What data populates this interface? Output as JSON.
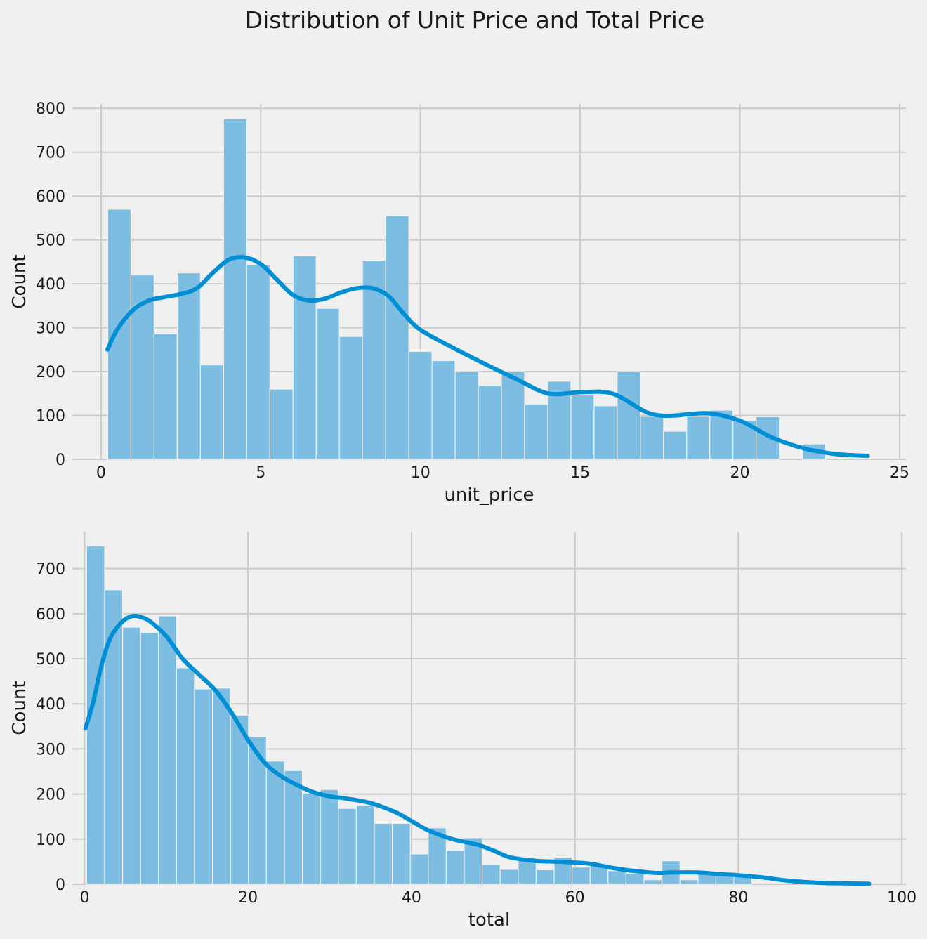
{
  "suptitle": "Distribution of Unit Price and Total Price",
  "colors": {
    "background": "#f0f0f0",
    "grid": "#cbcbcb",
    "bar": "#7dbde2",
    "kde": "#008fd5"
  },
  "chart_data": [
    {
      "type": "bar",
      "kind": "histogram",
      "xlabel": "unit_price",
      "ylabel": "Count",
      "xlim": [
        -0.9,
        25.2
      ],
      "ylim": [
        0,
        810
      ],
      "xticks": [
        0,
        5,
        10,
        15,
        20,
        25
      ],
      "yticks": [
        0,
        100,
        200,
        300,
        400,
        500,
        600,
        700,
        800
      ],
      "grid": true,
      "bins": {
        "start": 0.21,
        "width": 0.725,
        "counts": [
          570,
          420,
          286,
          425,
          215,
          776,
          444,
          160,
          464,
          344,
          280,
          454,
          555,
          246,
          225,
          200,
          168,
          200,
          126,
          178,
          147,
          122,
          200,
          98,
          64,
          98,
          112,
          89,
          97,
          0,
          35,
          0,
          0
        ]
      },
      "kde": {
        "x": [
          0.2,
          0.5,
          1,
          1.5,
          2,
          2.5,
          3,
          3.5,
          4,
          4.5,
          5,
          5.5,
          6,
          6.5,
          7,
          7.5,
          8,
          8.5,
          9,
          9.5,
          10,
          11,
          12,
          13,
          14,
          15,
          16,
          17,
          17.5,
          18,
          19,
          20,
          21,
          22,
          23,
          24
        ],
        "y": [
          250,
          295,
          340,
          362,
          370,
          377,
          390,
          425,
          455,
          460,
          445,
          410,
          375,
          362,
          366,
          380,
          390,
          390,
          372,
          330,
          295,
          255,
          218,
          183,
          150,
          153,
          150,
          110,
          100,
          100,
          105,
          88,
          50,
          25,
          12,
          8
        ]
      }
    },
    {
      "type": "bar",
      "kind": "histogram",
      "xlabel": "total",
      "ylabel": "Count",
      "xlim": [
        -1.5,
        100.5
      ],
      "ylim": [
        0,
        782
      ],
      "xticks": [
        0,
        20,
        40,
        60,
        80,
        100
      ],
      "yticks": [
        0,
        100,
        200,
        300,
        400,
        500,
        600,
        700
      ],
      "grid": true,
      "bins": {
        "start": 0.25,
        "width": 2.2,
        "counts": [
          750,
          653,
          570,
          558,
          595,
          480,
          433,
          435,
          375,
          328,
          273,
          252,
          202,
          210,
          168,
          175,
          135,
          135,
          67,
          125,
          75,
          103,
          43,
          33,
          60,
          32,
          60,
          38,
          45,
          30,
          24,
          10,
          52,
          10,
          24,
          24,
          24,
          0,
          0,
          0,
          0,
          0,
          0,
          0,
          0,
          0,
          0,
          0,
          0
        ]
      },
      "kde": {
        "x": [
          0.1,
          1,
          2,
          3,
          4,
          5,
          6,
          7,
          8,
          10,
          12,
          14,
          16,
          18,
          20,
          22,
          24,
          26,
          28,
          30,
          32,
          35,
          38,
          40,
          42,
          45,
          48,
          50,
          52,
          55,
          58,
          60,
          62,
          65,
          68,
          70,
          72,
          75,
          78,
          80,
          83,
          86,
          90,
          93,
          96
        ],
        "y": [
          345,
          400,
          480,
          540,
          570,
          588,
          595,
          592,
          583,
          550,
          500,
          465,
          430,
          380,
          320,
          270,
          240,
          220,
          204,
          195,
          190,
          180,
          160,
          140,
          120,
          100,
          88,
          75,
          60,
          52,
          50,
          48,
          45,
          35,
          28,
          25,
          26,
          26,
          22,
          20,
          15,
          8,
          3,
          2,
          1
        ]
      }
    }
  ]
}
